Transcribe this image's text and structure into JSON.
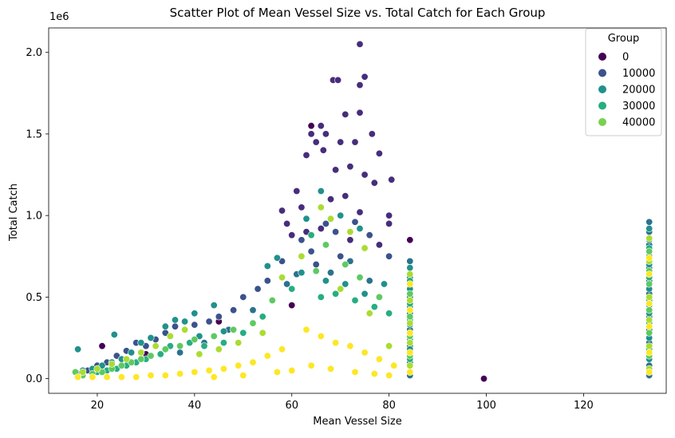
{
  "chart_data": {
    "type": "scatter",
    "title": "Scatter Plot of Mean Vessel Size vs. Total Catch for Each Group",
    "xlabel": "Mean Vessel Size",
    "ylabel": "Total Catch",
    "y_offset_label": "1e6",
    "xlim": [
      10,
      137
    ],
    "ylim": [
      -0.09,
      2.15
    ],
    "xticks": [
      20,
      40,
      60,
      80,
      100,
      120
    ],
    "xtick_labels": [
      "20",
      "40",
      "60",
      "80",
      "100",
      "120"
    ],
    "yticks": [
      0.0,
      0.5,
      1.0,
      1.5,
      2.0
    ],
    "ytick_labels": [
      "0.0",
      "0.5",
      "1.0",
      "1.5",
      "2.0"
    ],
    "grid": false,
    "legend": {
      "title": "Group",
      "placement": "top-right",
      "entries": [
        {
          "label": "0",
          "color": "#440154"
        },
        {
          "label": "10000",
          "color": "#3b528b"
        },
        {
          "label": "20000",
          "color": "#21918c"
        },
        {
          "label": "30000",
          "color": "#27ad81"
        },
        {
          "label": "40000",
          "color": "#7ad151"
        }
      ]
    },
    "palette": [
      "#440154",
      "#472d7b",
      "#3b528b",
      "#2c728e",
      "#21918c",
      "#27ad81",
      "#5ec962",
      "#aadc32",
      "#fde725"
    ],
    "series": [
      {
        "group_level": 0,
        "points": [
          [
            21,
            0.2
          ],
          [
            99.5,
            0.0
          ],
          [
            84.3,
            0.85
          ],
          [
            64,
            1.55
          ],
          [
            45,
            0.35
          ],
          [
            60,
            0.45
          ],
          [
            30,
            0.15
          ]
        ]
      },
      {
        "group_level": 1,
        "points": [
          [
            74,
            2.05
          ],
          [
            75,
            1.85
          ],
          [
            68.5,
            1.83
          ],
          [
            69.5,
            1.83
          ],
          [
            74,
            1.8
          ],
          [
            71,
            1.62
          ],
          [
            74,
            1.63
          ],
          [
            66,
            1.55
          ],
          [
            64,
            1.5
          ],
          [
            67,
            1.5
          ],
          [
            76.5,
            1.5
          ],
          [
            65,
            1.45
          ],
          [
            70,
            1.45
          ],
          [
            73,
            1.45
          ],
          [
            78,
            1.38
          ],
          [
            80.5,
            1.22
          ],
          [
            72,
            1.3
          ],
          [
            69,
            1.28
          ],
          [
            63,
            1.37
          ],
          [
            66.5,
            1.4
          ],
          [
            75,
            1.25
          ],
          [
            77,
            1.2
          ],
          [
            61,
            1.15
          ],
          [
            62,
            1.05
          ],
          [
            68,
            1.1
          ],
          [
            71,
            1.12
          ],
          [
            80,
            1.0
          ],
          [
            80,
            0.95
          ],
          [
            74,
            1.02
          ],
          [
            59,
            0.95
          ],
          [
            58,
            1.03
          ],
          [
            60,
            0.88
          ],
          [
            63,
            0.9
          ],
          [
            66,
            0.92
          ],
          [
            72,
            0.85
          ],
          [
            78,
            0.82
          ]
        ]
      },
      {
        "group_level": 2,
        "points": [
          [
            62,
            0.85
          ],
          [
            64,
            0.78
          ],
          [
            67,
            0.95
          ],
          [
            69,
            0.9
          ],
          [
            73,
            0.96
          ],
          [
            76,
            0.88
          ],
          [
            55,
            0.6
          ],
          [
            53,
            0.55
          ],
          [
            58,
            0.72
          ],
          [
            65,
            0.7
          ],
          [
            70,
            0.75
          ],
          [
            75,
            0.8
          ],
          [
            80,
            0.75
          ],
          [
            50,
            0.5
          ],
          [
            48,
            0.42
          ],
          [
            45,
            0.38
          ],
          [
            43,
            0.35
          ],
          [
            40,
            0.33
          ],
          [
            38,
            0.3
          ],
          [
            36,
            0.32
          ],
          [
            34,
            0.28
          ],
          [
            32,
            0.24
          ],
          [
            30,
            0.2
          ],
          [
            28,
            0.22
          ],
          [
            26,
            0.17
          ],
          [
            24,
            0.14
          ],
          [
            22,
            0.1
          ],
          [
            20,
            0.08
          ],
          [
            18,
            0.05
          ],
          [
            16,
            0.03
          ]
        ]
      },
      {
        "group_level": 3,
        "points": [
          [
            133.5,
            0.96
          ],
          [
            133.5,
            0.9
          ],
          [
            133.5,
            0.82
          ],
          [
            133.5,
            0.75
          ],
          [
            133.5,
            0.68
          ],
          [
            133.5,
            0.6
          ],
          [
            133.5,
            0.52
          ],
          [
            133.5,
            0.45
          ],
          [
            133.5,
            0.38
          ],
          [
            133.5,
            0.3
          ],
          [
            133.5,
            0.22
          ],
          [
            133.5,
            0.15
          ],
          [
            133.5,
            0.08
          ],
          [
            133.5,
            0.02
          ],
          [
            84.3,
            0.72
          ],
          [
            84.3,
            0.62
          ],
          [
            84.3,
            0.5
          ],
          [
            84.3,
            0.4
          ],
          [
            84.3,
            0.3
          ],
          [
            84.3,
            0.2
          ],
          [
            84.3,
            0.1
          ],
          [
            84.3,
            0.02
          ],
          [
            61,
            0.64
          ],
          [
            59,
            0.58
          ],
          [
            68,
            0.65
          ],
          [
            72,
            0.72
          ],
          [
            76,
            0.6
          ],
          [
            52,
            0.42
          ],
          [
            47,
            0.3
          ],
          [
            42,
            0.22
          ],
          [
            37,
            0.16
          ]
        ]
      },
      {
        "group_level": 4,
        "points": [
          [
            133.5,
            0.92
          ],
          [
            133.5,
            0.85
          ],
          [
            133.5,
            0.7
          ],
          [
            133.5,
            0.55
          ],
          [
            133.5,
            0.4
          ],
          [
            133.5,
            0.25
          ],
          [
            133.5,
            0.12
          ],
          [
            84.3,
            0.68
          ],
          [
            84.3,
            0.55
          ],
          [
            84.3,
            0.44
          ],
          [
            84.3,
            0.33
          ],
          [
            84.3,
            0.18
          ],
          [
            66,
            1.15
          ],
          [
            63,
            0.98
          ],
          [
            70,
            1.0
          ],
          [
            74,
            0.92
          ],
          [
            57,
            0.74
          ],
          [
            55,
            0.69
          ],
          [
            62,
            0.65
          ],
          [
            67,
            0.6
          ],
          [
            71,
            0.58
          ],
          [
            75,
            0.52
          ],
          [
            79,
            0.58
          ],
          [
            44,
            0.45
          ],
          [
            40,
            0.4
          ],
          [
            36,
            0.36
          ],
          [
            34,
            0.32
          ],
          [
            31,
            0.25
          ],
          [
            29,
            0.22
          ],
          [
            27,
            0.16
          ],
          [
            25,
            0.12
          ],
          [
            23,
            0.1
          ],
          [
            21,
            0.08
          ],
          [
            19,
            0.06
          ],
          [
            17,
            0.05
          ],
          [
            16,
            0.18
          ],
          [
            23.5,
            0.27
          ],
          [
            38,
            0.35
          ],
          [
            41,
            0.26
          ],
          [
            46,
            0.29
          ]
        ]
      },
      {
        "group_level": 5,
        "points": [
          [
            133.5,
            0.8
          ],
          [
            133.5,
            0.62
          ],
          [
            133.5,
            0.48
          ],
          [
            133.5,
            0.34
          ],
          [
            133.5,
            0.18
          ],
          [
            84.3,
            0.6
          ],
          [
            84.3,
            0.46
          ],
          [
            84.3,
            0.36
          ],
          [
            84.3,
            0.24
          ],
          [
            84.3,
            0.12
          ],
          [
            64,
            0.88
          ],
          [
            60,
            0.55
          ],
          [
            66,
            0.5
          ],
          [
            69,
            0.52
          ],
          [
            73,
            0.48
          ],
          [
            77,
            0.44
          ],
          [
            80,
            0.4
          ],
          [
            54,
            0.38
          ],
          [
            50,
            0.28
          ],
          [
            46,
            0.22
          ],
          [
            42,
            0.2
          ],
          [
            39,
            0.22
          ],
          [
            35,
            0.2
          ],
          [
            33,
            0.15
          ],
          [
            30,
            0.12
          ],
          [
            28,
            0.1
          ],
          [
            26,
            0.08
          ],
          [
            24,
            0.06
          ],
          [
            22,
            0.05
          ],
          [
            20,
            0.04
          ]
        ]
      },
      {
        "group_level": 6,
        "points": [
          [
            133.5,
            0.78
          ],
          [
            133.5,
            0.66
          ],
          [
            133.5,
            0.58
          ],
          [
            133.5,
            0.42
          ],
          [
            133.5,
            0.28
          ],
          [
            133.5,
            0.14
          ],
          [
            84.3,
            0.52
          ],
          [
            84.3,
            0.38
          ],
          [
            84.3,
            0.26
          ],
          [
            84.3,
            0.14
          ],
          [
            67,
            0.82
          ],
          [
            65,
            0.66
          ],
          [
            71,
            0.7
          ],
          [
            74,
            0.62
          ],
          [
            78,
            0.5
          ],
          [
            56,
            0.48
          ],
          [
            52,
            0.34
          ],
          [
            48,
            0.3
          ],
          [
            44,
            0.26
          ],
          [
            40,
            0.24
          ],
          [
            37,
            0.2
          ],
          [
            34,
            0.18
          ],
          [
            31,
            0.14
          ],
          [
            29,
            0.12
          ],
          [
            27,
            0.1
          ],
          [
            25,
            0.08
          ],
          [
            23,
            0.06
          ],
          [
            21,
            0.04
          ],
          [
            19,
            0.03
          ],
          [
            17,
            0.02
          ],
          [
            15.5,
            0.04
          ]
        ]
      },
      {
        "group_level": 7,
        "points": [
          [
            133.5,
            0.86
          ],
          [
            133.5,
            0.72
          ],
          [
            133.5,
            0.5
          ],
          [
            133.5,
            0.36
          ],
          [
            133.5,
            0.2
          ],
          [
            133.5,
            0.06
          ],
          [
            84.3,
            0.64
          ],
          [
            84.3,
            0.48
          ],
          [
            84.3,
            0.34
          ],
          [
            84.3,
            0.22
          ],
          [
            84.3,
            0.08
          ],
          [
            66,
            1.05
          ],
          [
            68,
            0.98
          ],
          [
            72,
            0.9
          ],
          [
            75,
            0.8
          ],
          [
            62,
            0.75
          ],
          [
            58,
            0.62
          ],
          [
            70,
            0.55
          ],
          [
            76,
            0.4
          ],
          [
            80,
            0.2
          ],
          [
            54,
            0.28
          ],
          [
            49,
            0.22
          ],
          [
            45,
            0.18
          ],
          [
            41,
            0.15
          ],
          [
            38,
            0.3
          ],
          [
            35,
            0.26
          ],
          [
            32,
            0.2
          ],
          [
            29,
            0.16
          ],
          [
            26,
            0.12
          ],
          [
            23,
            0.09
          ],
          [
            20,
            0.06
          ],
          [
            17,
            0.04
          ]
        ]
      },
      {
        "group_level": 8,
        "points": [
          [
            133.5,
            0.74
          ],
          [
            133.5,
            0.64
          ],
          [
            133.5,
            0.46
          ],
          [
            133.5,
            0.32
          ],
          [
            133.5,
            0.16
          ],
          [
            133.5,
            0.04
          ],
          [
            84.3,
            0.58
          ],
          [
            84.3,
            0.42
          ],
          [
            84.3,
            0.28
          ],
          [
            84.3,
            0.16
          ],
          [
            84.3,
            0.04
          ],
          [
            63,
            0.3
          ],
          [
            66,
            0.26
          ],
          [
            69,
            0.22
          ],
          [
            72,
            0.2
          ],
          [
            75,
            0.16
          ],
          [
            78,
            0.12
          ],
          [
            81,
            0.08
          ],
          [
            58,
            0.18
          ],
          [
            55,
            0.14
          ],
          [
            52,
            0.1
          ],
          [
            49,
            0.08
          ],
          [
            46,
            0.06
          ],
          [
            43,
            0.05
          ],
          [
            40,
            0.04
          ],
          [
            37,
            0.03
          ],
          [
            34,
            0.02
          ],
          [
            31,
            0.02
          ],
          [
            28,
            0.01
          ],
          [
            25,
            0.01
          ],
          [
            22,
            0.01
          ],
          [
            19,
            0.01
          ],
          [
            16,
            0.01
          ],
          [
            60,
            0.05
          ],
          [
            64,
            0.08
          ],
          [
            68,
            0.06
          ],
          [
            73,
            0.04
          ],
          [
            77,
            0.03
          ],
          [
            80,
            0.02
          ],
          [
            57,
            0.04
          ],
          [
            50,
            0.02
          ],
          [
            44,
            0.01
          ]
        ]
      }
    ]
  }
}
